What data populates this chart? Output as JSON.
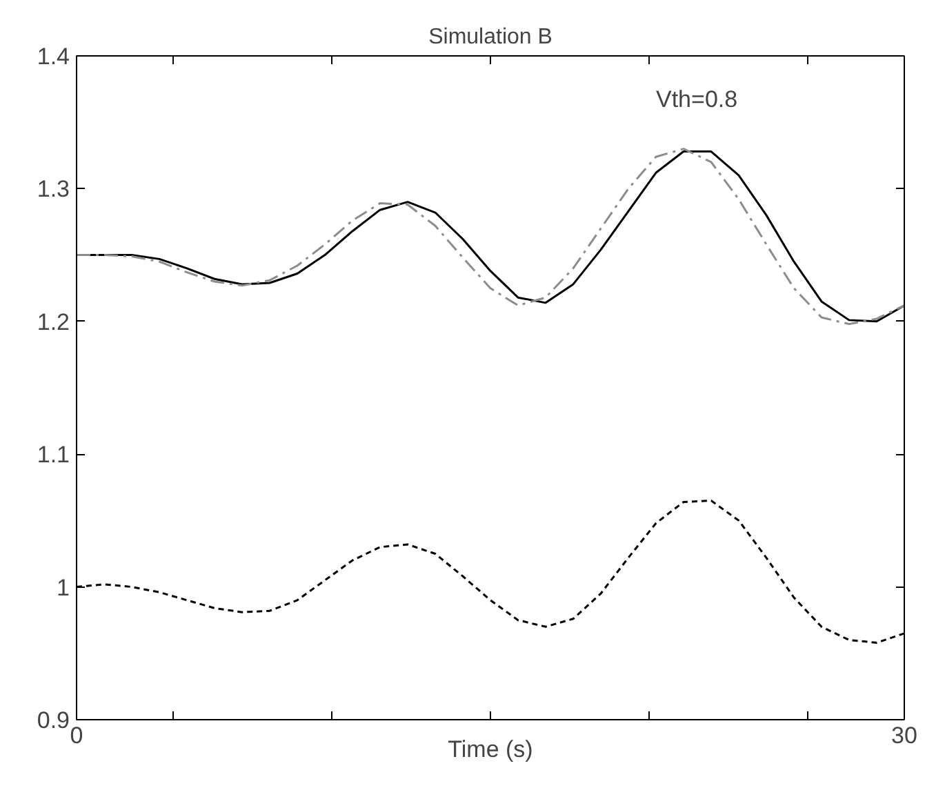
{
  "chart_data": {
    "type": "line",
    "title": "Simulation B",
    "xlabel": "Time (s)",
    "annotations": [
      "Vth=0.8"
    ],
    "x": [
      0,
      1,
      2,
      3,
      4,
      5,
      6,
      7,
      8,
      9,
      10,
      11,
      12,
      13,
      14,
      15,
      16,
      17,
      18,
      19,
      20,
      21,
      22,
      23,
      24,
      25,
      26,
      27,
      28,
      29,
      30
    ],
    "series": [
      {
        "color": "#000000",
        "line_style": "solid",
        "values": [
          1.25,
          1.25,
          1.25,
          1.247,
          1.24,
          1.232,
          1.228,
          1.229,
          1.236,
          1.25,
          1.268,
          1.284,
          1.29,
          1.282,
          1.262,
          1.238,
          1.218,
          1.214,
          1.228,
          1.254,
          1.283,
          1.312,
          1.328,
          1.328,
          1.31,
          1.28,
          1.245,
          1.215,
          1.201,
          1.2,
          1.212
        ]
      },
      {
        "color": "#8c8c8c",
        "line_style": "dashed",
        "values": [
          1.25,
          1.25,
          1.249,
          1.245,
          1.237,
          1.23,
          1.227,
          1.231,
          1.242,
          1.258,
          1.276,
          1.289,
          1.288,
          1.272,
          1.248,
          1.225,
          1.212,
          1.218,
          1.24,
          1.27,
          1.3,
          1.324,
          1.33,
          1.32,
          1.292,
          1.258,
          1.225,
          1.203,
          1.198,
          1.202,
          1.212
        ]
      },
      {
        "color": "#000000",
        "line_style": "dotted",
        "values": [
          1.0,
          1.002,
          1.0,
          0.996,
          0.99,
          0.984,
          0.981,
          0.982,
          0.99,
          1.005,
          1.02,
          1.03,
          1.032,
          1.025,
          1.008,
          0.99,
          0.975,
          0.97,
          0.976,
          0.995,
          1.022,
          1.048,
          1.064,
          1.065,
          1.05,
          1.022,
          0.992,
          0.97,
          0.96,
          0.958,
          0.965
        ]
      }
    ],
    "xlim": [
      0,
      30
    ],
    "ylim": [
      0.9,
      1.4
    ],
    "xticks": [
      0,
      {
        "value": 3.5,
        "label": null
      },
      {
        "value": 9.25,
        "label": null
      },
      {
        "value": 15,
        "label": null
      },
      {
        "value": 20.75,
        "label": null
      },
      {
        "value": 26.5,
        "label": null
      },
      30
    ],
    "yticks": [
      0.9,
      1,
      1.1,
      1.2,
      1.3,
      1.4
    ],
    "grid": false
  }
}
